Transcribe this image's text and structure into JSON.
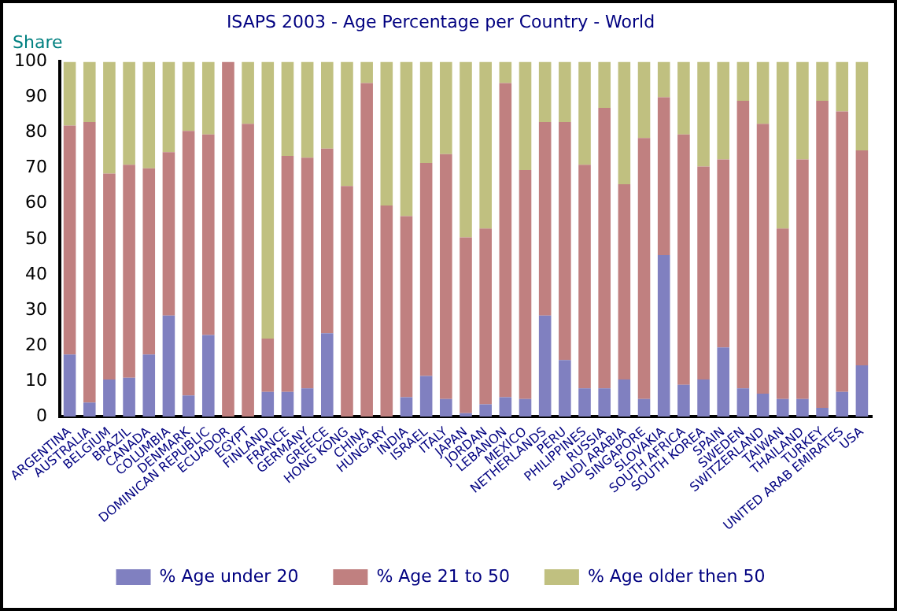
{
  "chart_data": {
    "type": "bar",
    "stacked": true,
    "title": "ISAPS 2003 - Age Percentage per Country - World",
    "ylabel": "Share",
    "categories": [
      "ARGENTINA",
      "AUSTRALIA",
      "BELGIUM",
      "BRAZIL",
      "CANADA",
      "COLUMBIA",
      "DENMARK",
      "DOMINICAN REPUBLIC",
      "ECUADOR",
      "EGYPT",
      "FINLAND",
      "FRANCE",
      "GERMANY",
      "GREECE",
      "HONG KONG",
      "CHINA",
      "HUNGARY",
      "INDIA",
      "ISRAEL",
      "ITALY",
      "JAPAN",
      "JORDAN",
      "LEBANON",
      "MEXICO",
      "NETHERLANDS",
      "PERU",
      "PHILIPPINES",
      "RUSSIA",
      "SAUDI ARABIA",
      "SINGAPORE",
      "SLOVAKIA",
      "SOUTH AFRICA",
      "SOUTH KOREA",
      "SPAIN",
      "SWEDEN",
      "SWITZERLAND",
      "TAIWAN",
      "THAILAND",
      "TURKEY",
      "UNITED ARAB EMIRATES",
      "USA"
    ],
    "series": [
      {
        "name": "% Age under 20",
        "color": "#8080c0",
        "values": [
          17.5,
          4,
          10.5,
          11,
          17.5,
          28.5,
          6,
          23,
          0,
          0,
          7,
          7,
          8,
          23.5,
          0,
          0,
          0,
          5.5,
          11.5,
          5,
          1,
          3.5,
          5.5,
          5,
          28.5,
          16,
          8,
          8,
          10.5,
          5,
          45.5,
          9,
          10.5,
          19.5,
          8,
          6.5,
          5,
          5,
          2.5,
          7,
          14.5
        ]
      },
      {
        "name": "% Age 21 to 50",
        "color": "#c08080",
        "values": [
          64.5,
          79,
          58,
          60,
          52.5,
          46,
          74.5,
          56.5,
          100,
          82.5,
          15,
          66.5,
          65,
          52,
          65,
          94,
          59.5,
          51,
          60,
          69,
          49.5,
          49.5,
          88.5,
          64.5,
          54.5,
          67,
          63,
          79,
          55,
          73.5,
          44.5,
          70.5,
          60,
          53,
          81,
          76,
          48,
          67.5,
          86.5,
          79,
          60.5
        ]
      },
      {
        "name": "% Age older then 50",
        "color": "#c0c080",
        "values": [
          18,
          17,
          31.5,
          29,
          30,
          25.5,
          19.5,
          20.5,
          0,
          17.5,
          78,
          26.5,
          27,
          24.5,
          35,
          6,
          40.5,
          43.5,
          28.5,
          26,
          49.5,
          47,
          6,
          30.5,
          17,
          17,
          29,
          13,
          34.5,
          21.5,
          10,
          20.5,
          29.5,
          27.5,
          11,
          17.5,
          47,
          27.5,
          11,
          14,
          25
        ]
      }
    ],
    "ylim": [
      0,
      100
    ],
    "yticks": [
      0,
      10,
      20,
      30,
      40,
      50,
      60,
      70,
      80,
      90,
      100
    ],
    "grid": false,
    "legend": "bottom"
  }
}
